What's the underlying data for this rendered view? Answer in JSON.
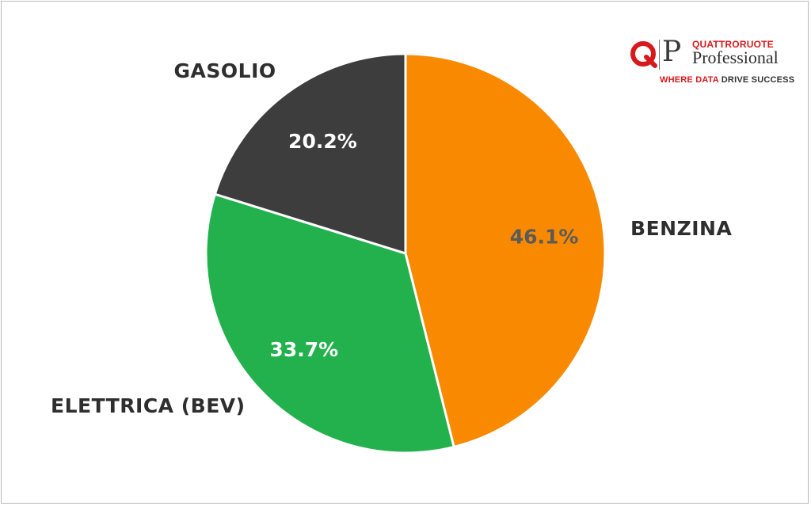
{
  "brand": {
    "logo_letters": "P",
    "top": "QUATTRORUOTE",
    "bottom": "Professional",
    "tagline_red": "WHERE DATA",
    "tagline_dark": "DRIVE SUCCESS",
    "colors": {
      "red": "#d7191c",
      "dark": "#333333"
    }
  },
  "chart_data": {
    "type": "pie",
    "title": "",
    "start": "12 o'clock, clockwise",
    "slices": [
      {
        "label": "BENZINA",
        "value": 46.1,
        "value_label": "46.1%",
        "color": "#f98a00",
        "value_color": "#5a5a5a"
      },
      {
        "label": "ELETTRICA (BEV)",
        "value": 33.7,
        "value_label": "33.7%",
        "color": "#22b14c",
        "value_color": "#ffffff"
      },
      {
        "label": "GASOLIO",
        "value": 20.2,
        "value_label": "20.2%",
        "color": "#3d3d3d",
        "value_color": "#ffffff"
      }
    ],
    "legend": "none (direct labels)"
  }
}
